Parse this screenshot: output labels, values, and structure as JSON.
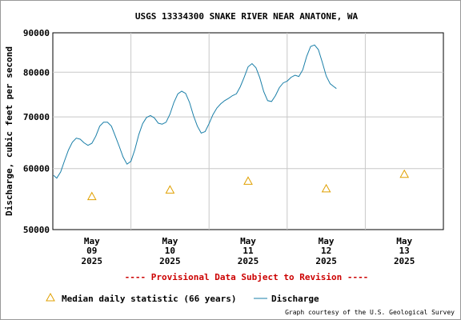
{
  "chart_data": {
    "type": "line",
    "title": "USGS 13334300 SNAKE RIVER NEAR ANATONE, WA",
    "ylabel": "Discharge, cubic feet per second",
    "xlabel": "",
    "y_scale": "log",
    "ylim": [
      50000,
      90000
    ],
    "y_ticks": [
      "90000",
      "80000",
      "70000",
      "60000",
      "50000"
    ],
    "x_ticks": [
      {
        "month": "May",
        "day": "09",
        "year": "2025"
      },
      {
        "month": "May",
        "day": "10",
        "year": "2025"
      },
      {
        "month": "May",
        "day": "11",
        "year": "2025"
      },
      {
        "month": "May",
        "day": "12",
        "year": "2025"
      },
      {
        "month": "May",
        "day": "13",
        "year": "2025"
      }
    ],
    "grid": true,
    "legend_position": "bottom",
    "provisional_note": "---- Provisional Data Subject to Revision ----",
    "credit": "Graph courtesy of the U.S. Geological Survey",
    "series": [
      {
        "name": "Median daily statistic (66 years)",
        "marker": "triangle",
        "color": "#e0a000",
        "points": [
          {
            "day": 9.0,
            "value": 55200
          },
          {
            "day": 10.0,
            "value": 56300
          },
          {
            "day": 11.0,
            "value": 57800
          },
          {
            "day": 12.0,
            "value": 56500
          },
          {
            "day": 13.0,
            "value": 59000
          }
        ]
      },
      {
        "name": "Discharge",
        "marker": "line",
        "color": "#1a7fa8",
        "points": [
          {
            "day": 8.51,
            "value": 58800
          },
          {
            "day": 8.55,
            "value": 58300
          },
          {
            "day": 8.6,
            "value": 59400
          },
          {
            "day": 8.65,
            "value": 61400
          },
          {
            "day": 8.7,
            "value": 63400
          },
          {
            "day": 8.75,
            "value": 64900
          },
          {
            "day": 8.8,
            "value": 65700
          },
          {
            "day": 8.85,
            "value": 65500
          },
          {
            "day": 8.9,
            "value": 64800
          },
          {
            "day": 8.95,
            "value": 64300
          },
          {
            "day": 9.0,
            "value": 64700
          },
          {
            "day": 9.05,
            "value": 66100
          },
          {
            "day": 9.1,
            "value": 68100
          },
          {
            "day": 9.15,
            "value": 68900
          },
          {
            "day": 9.2,
            "value": 68900
          },
          {
            "day": 9.25,
            "value": 68100
          },
          {
            "day": 9.3,
            "value": 66100
          },
          {
            "day": 9.35,
            "value": 64100
          },
          {
            "day": 9.4,
            "value": 62100
          },
          {
            "day": 9.45,
            "value": 60800
          },
          {
            "day": 9.5,
            "value": 61300
          },
          {
            "day": 9.55,
            "value": 63500
          },
          {
            "day": 9.6,
            "value": 66400
          },
          {
            "day": 9.65,
            "value": 68600
          },
          {
            "day": 9.7,
            "value": 69900
          },
          {
            "day": 9.75,
            "value": 70300
          },
          {
            "day": 9.8,
            "value": 69800
          },
          {
            "day": 9.85,
            "value": 68700
          },
          {
            "day": 9.9,
            "value": 68500
          },
          {
            "day": 9.95,
            "value": 68900
          },
          {
            "day": 10.0,
            "value": 70600
          },
          {
            "day": 10.05,
            "value": 73100
          },
          {
            "day": 10.1,
            "value": 75000
          },
          {
            "day": 10.15,
            "value": 75600
          },
          {
            "day": 10.2,
            "value": 75100
          },
          {
            "day": 10.25,
            "value": 73100
          },
          {
            "day": 10.3,
            "value": 70300
          },
          {
            "day": 10.35,
            "value": 68100
          },
          {
            "day": 10.4,
            "value": 66700
          },
          {
            "day": 10.45,
            "value": 67000
          },
          {
            "day": 10.5,
            "value": 68600
          },
          {
            "day": 10.55,
            "value": 70500
          },
          {
            "day": 10.6,
            "value": 71900
          },
          {
            "day": 10.65,
            "value": 72800
          },
          {
            "day": 10.7,
            "value": 73500
          },
          {
            "day": 10.75,
            "value": 74000
          },
          {
            "day": 10.8,
            "value": 74600
          },
          {
            "day": 10.85,
            "value": 75000
          },
          {
            "day": 10.9,
            "value": 76600
          },
          {
            "day": 10.95,
            "value": 78800
          },
          {
            "day": 11.0,
            "value": 81300
          },
          {
            "day": 11.05,
            "value": 82100
          },
          {
            "day": 11.1,
            "value": 81100
          },
          {
            "day": 11.15,
            "value": 78700
          },
          {
            "day": 11.2,
            "value": 75500
          },
          {
            "day": 11.25,
            "value": 73500
          },
          {
            "day": 11.3,
            "value": 73300
          },
          {
            "day": 11.35,
            "value": 74600
          },
          {
            "day": 11.4,
            "value": 76400
          },
          {
            "day": 11.45,
            "value": 77500
          },
          {
            "day": 11.5,
            "value": 77900
          },
          {
            "day": 11.55,
            "value": 78800
          },
          {
            "day": 11.6,
            "value": 79300
          },
          {
            "day": 11.65,
            "value": 79000
          },
          {
            "day": 11.7,
            "value": 80600
          },
          {
            "day": 11.75,
            "value": 83900
          },
          {
            "day": 11.8,
            "value": 86400
          },
          {
            "day": 11.85,
            "value": 86800
          },
          {
            "day": 11.9,
            "value": 85600
          },
          {
            "day": 11.95,
            "value": 82400
          },
          {
            "day": 12.0,
            "value": 79100
          },
          {
            "day": 12.05,
            "value": 77300
          },
          {
            "day": 12.1,
            "value": 76600
          },
          {
            "day": 12.13,
            "value": 76200
          }
        ]
      }
    ]
  }
}
